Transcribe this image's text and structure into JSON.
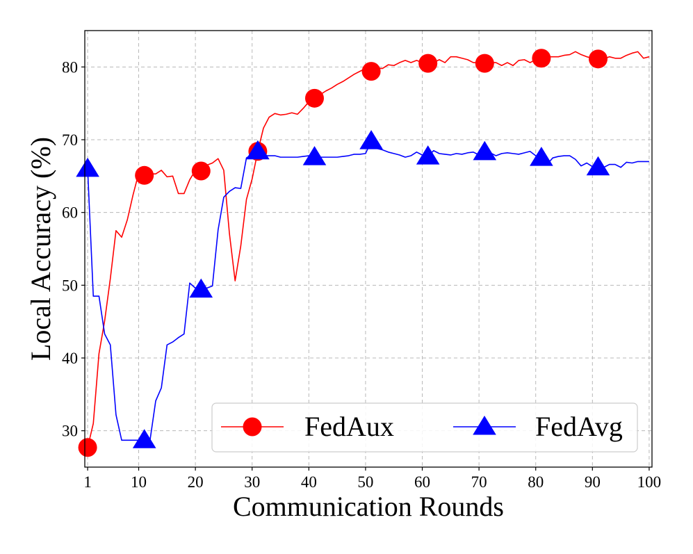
{
  "chart_data": {
    "type": "line",
    "xlabel": "Communication Rounds",
    "ylabel": "Local Accuracy (%)",
    "xlim": [
      0.5,
      100.5
    ],
    "ylim": [
      25,
      85
    ],
    "xticks": [
      1,
      10,
      20,
      30,
      40,
      50,
      60,
      70,
      80,
      90,
      100
    ],
    "yticks": [
      30,
      40,
      50,
      60,
      70,
      80
    ],
    "grid": true,
    "legend_position": "bottom-right",
    "marker_every_x": [
      1,
      11,
      21,
      31,
      41,
      51,
      61,
      71,
      81,
      91
    ],
    "series": [
      {
        "name": "FedAux",
        "color": "#ff0000",
        "marker": "circle",
        "x": [
          1,
          2,
          3,
          4,
          5,
          6,
          7,
          8,
          9,
          10,
          11,
          12,
          13,
          14,
          15,
          16,
          17,
          18,
          19,
          20,
          21,
          22,
          23,
          24,
          25,
          26,
          27,
          28,
          29,
          30,
          31,
          32,
          33,
          34,
          35,
          36,
          37,
          38,
          39,
          40,
          41,
          42,
          43,
          44,
          45,
          46,
          47,
          48,
          49,
          50,
          51,
          52,
          53,
          54,
          55,
          56,
          57,
          58,
          59,
          60,
          61,
          62,
          63,
          64,
          65,
          66,
          67,
          68,
          69,
          70,
          71,
          72,
          73,
          74,
          75,
          76,
          77,
          78,
          79,
          80,
          81,
          82,
          83,
          84,
          85,
          86,
          87,
          88,
          89,
          90,
          91,
          92,
          93,
          94,
          95,
          96,
          97,
          98,
          99,
          100
        ],
        "y": [
          27.7,
          31.0,
          40.6,
          45.1,
          50.9,
          57.5,
          56.6,
          59.0,
          62.4,
          65.4,
          65.1,
          65.3,
          65.3,
          65.8,
          64.9,
          65.0,
          62.6,
          62.6,
          64.5,
          65.8,
          65.7,
          66.5,
          66.8,
          67.4,
          65.8,
          57.1,
          50.6,
          55.4,
          61.8,
          64.6,
          68.4,
          71.6,
          73.1,
          73.6,
          73.4,
          73.5,
          73.7,
          73.5,
          74.3,
          75.2,
          75.7,
          76.2,
          76.7,
          77.1,
          77.6,
          78.0,
          78.5,
          79.0,
          79.4,
          79.8,
          79.4,
          79.8,
          79.8,
          80.3,
          80.2,
          80.6,
          80.9,
          80.6,
          80.9,
          80.6,
          80.5,
          80.6,
          81.0,
          80.6,
          81.4,
          81.4,
          81.2,
          81.0,
          80.6,
          80.6,
          80.5,
          80.6,
          80.6,
          80.2,
          80.6,
          80.2,
          80.9,
          81.0,
          80.6,
          81.0,
          81.2,
          81.4,
          81.4,
          81.4,
          81.6,
          81.7,
          82.1,
          81.7,
          81.4,
          81.2,
          81.1,
          81.1,
          81.4,
          81.2,
          81.2,
          81.6,
          81.9,
          82.1,
          81.2,
          81.4
        ]
      },
      {
        "name": "FedAvg",
        "color": "#0000ff",
        "marker": "triangle",
        "x": [
          1,
          2,
          3,
          4,
          5,
          6,
          7,
          8,
          9,
          10,
          11,
          12,
          13,
          14,
          15,
          16,
          17,
          18,
          19,
          20,
          21,
          22,
          23,
          24,
          25,
          26,
          27,
          28,
          29,
          30,
          31,
          32,
          33,
          34,
          35,
          36,
          37,
          38,
          39,
          40,
          41,
          42,
          43,
          44,
          45,
          46,
          47,
          48,
          49,
          50,
          51,
          52,
          53,
          54,
          55,
          56,
          57,
          58,
          59,
          60,
          61,
          62,
          63,
          64,
          65,
          66,
          67,
          68,
          69,
          70,
          71,
          72,
          73,
          74,
          75,
          76,
          77,
          78,
          79,
          80,
          81,
          82,
          83,
          84,
          85,
          86,
          87,
          88,
          89,
          90,
          91,
          92,
          93,
          94,
          95,
          96,
          97,
          98,
          99,
          100
        ],
        "y": [
          66.0,
          48.5,
          48.5,
          43.3,
          41.8,
          32.2,
          28.7,
          28.7,
          28.7,
          28.7,
          28.7,
          28.7,
          34.1,
          35.9,
          41.8,
          42.2,
          42.8,
          43.3,
          50.3,
          49.6,
          49.4,
          49.6,
          49.9,
          57.6,
          62.1,
          62.9,
          63.4,
          63.3,
          67.5,
          68.0,
          68.4,
          67.8,
          67.8,
          67.8,
          67.6,
          67.6,
          67.6,
          67.6,
          67.7,
          67.8,
          67.6,
          67.6,
          67.6,
          67.6,
          67.6,
          67.7,
          67.8,
          68.0,
          68.0,
          68.1,
          69.8,
          68.8,
          68.6,
          68.3,
          68.1,
          67.9,
          67.6,
          67.8,
          68.3,
          67.9,
          67.7,
          68.5,
          68.1,
          68.0,
          67.9,
          68.1,
          68.0,
          68.2,
          68.3,
          67.9,
          68.3,
          68.2,
          67.8,
          68.1,
          68.2,
          68.1,
          68.0,
          68.2,
          68.4,
          67.8,
          67.5,
          66.6,
          67.5,
          67.7,
          67.8,
          67.8,
          67.3,
          66.4,
          66.8,
          66.3,
          66.2,
          66.2,
          66.6,
          66.6,
          66.2,
          66.9,
          66.8,
          67.0,
          67.0,
          67.0
        ]
      }
    ]
  }
}
